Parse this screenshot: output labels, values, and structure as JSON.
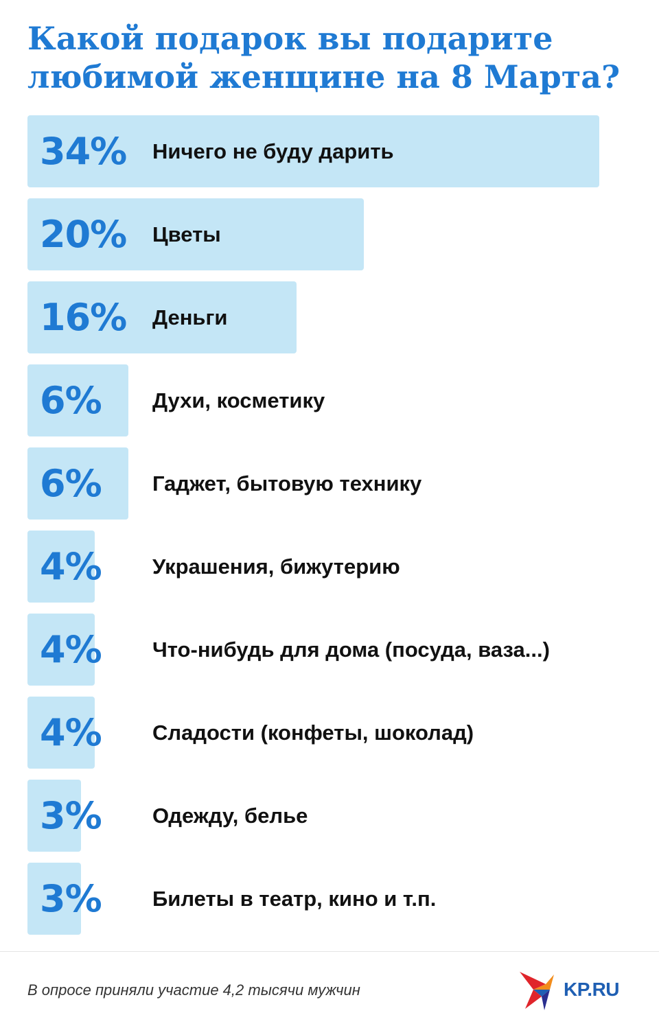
{
  "title_lines": [
    "Какой подарок вы подарите",
    "любимой женщине на 8 Марта?"
  ],
  "chart_data": {
    "type": "bar",
    "orientation": "horizontal",
    "title": "Какой подарок вы подарите любимой женщине на 8 Марта?",
    "categories": [
      "Ничего не буду дарить",
      "Цветы",
      "Деньги",
      "Духи, косметику",
      "Гаджет, бытовую технику",
      "Украшения, бижутерию",
      "Что-нибудь для дома (посуда, ваза...)",
      "Сладости (конфеты, шоколад)",
      "Одежду, белье",
      "Билеты в театр, кино и т.п."
    ],
    "values": [
      34,
      20,
      16,
      6,
      6,
      4,
      4,
      4,
      3,
      3
    ],
    "value_labels": [
      "34%",
      "20%",
      "16%",
      "6%",
      "6%",
      "4%",
      "4%",
      "4%",
      "3%",
      "3%"
    ],
    "unit": "%",
    "xlim": [
      0,
      34
    ],
    "grid": false,
    "legend": "none"
  },
  "footnote": "В опросе приняли участие 4,2 тысячи мужчин",
  "logo": {
    "text": "KP.RU",
    "icon": "kp-swallow-logo-icon"
  },
  "colors": {
    "accent": "#1f7ad3",
    "bar_fill": "#c4e6f6",
    "label_text": "#111111",
    "logo_red": "#e0252b",
    "logo_orange": "#f28c1b",
    "logo_blue": "#1f5fb3"
  }
}
